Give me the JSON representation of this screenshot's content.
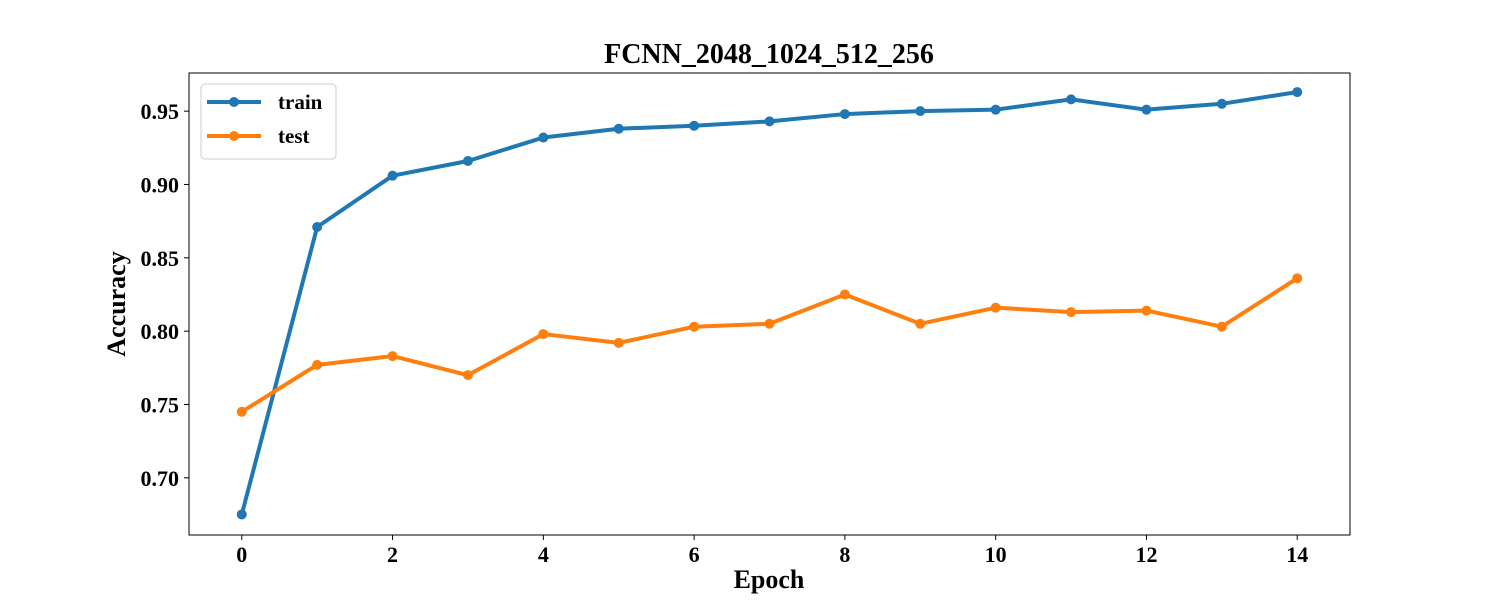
{
  "chart_data": {
    "type": "line",
    "title": "FCNN_2048_1024_512_256",
    "xlabel": "Epoch",
    "ylabel": "Accuracy",
    "x": [
      0,
      1,
      2,
      3,
      4,
      5,
      6,
      7,
      8,
      9,
      10,
      11,
      12,
      13,
      14
    ],
    "xlim": [
      -0.7,
      14.7
    ],
    "ylim": [
      0.661,
      0.976
    ],
    "xticks": [
      0,
      2,
      4,
      6,
      8,
      10,
      12,
      14
    ],
    "yticks": [
      0.7,
      0.75,
      0.8,
      0.85,
      0.9,
      0.95
    ],
    "xtick_labels": [
      "0",
      "2",
      "4",
      "6",
      "8",
      "10",
      "12",
      "14"
    ],
    "ytick_labels": [
      "0.70",
      "0.75",
      "0.80",
      "0.85",
      "0.90",
      "0.95"
    ],
    "grid": false,
    "legend_position": "top-left",
    "series": [
      {
        "name": "train",
        "color": "#1f77b4",
        "values": [
          0.675,
          0.871,
          0.906,
          0.916,
          0.932,
          0.938,
          0.94,
          0.943,
          0.948,
          0.95,
          0.951,
          0.958,
          0.951,
          0.955,
          0.963
        ]
      },
      {
        "name": "test",
        "color": "#ff7f0e",
        "values": [
          0.745,
          0.777,
          0.783,
          0.77,
          0.798,
          0.792,
          0.803,
          0.805,
          0.825,
          0.805,
          0.816,
          0.813,
          0.814,
          0.803,
          0.836
        ]
      }
    ]
  }
}
